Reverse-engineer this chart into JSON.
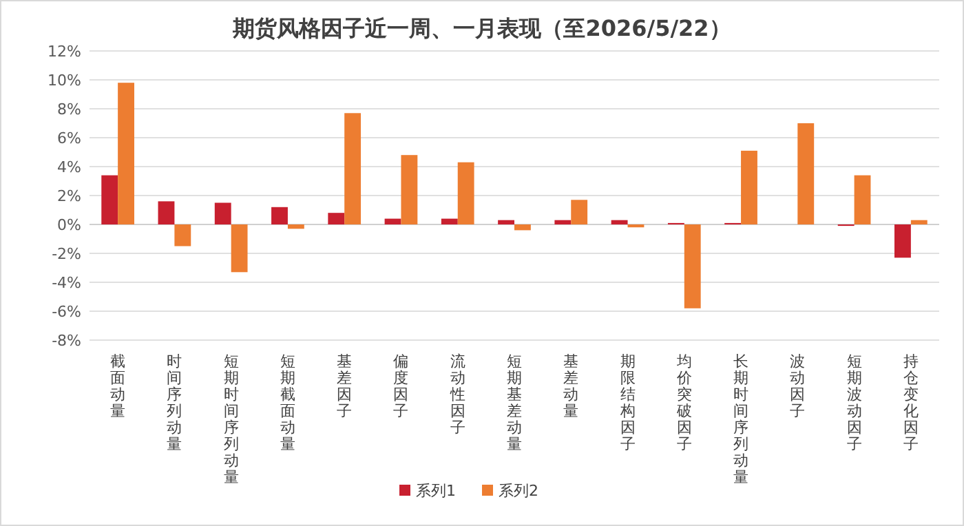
{
  "chart_data": {
    "type": "bar",
    "title": "期货风格因子近一周、一月表现（至2026/5/22）",
    "categories": [
      "截面动量",
      "时间序列动量",
      "短期时间序列动量",
      "短期截面动量",
      "基差因子",
      "偏度因子",
      "流动性因子",
      "短期基差动量",
      "基差动量",
      "期限结构因子",
      "均价突破因子",
      "长期时间序列动量",
      "波动因子",
      "短期波动因子",
      "持仓变化因子"
    ],
    "series": [
      {
        "name": "系列1",
        "color": "#c8202f",
        "values": [
          3.4,
          1.6,
          1.5,
          1.2,
          0.8,
          0.4,
          0.4,
          0.3,
          0.3,
          0.3,
          0.1,
          0.1,
          0,
          -0.1,
          -2.3
        ]
      },
      {
        "name": "系列2",
        "color": "#ed7d31",
        "values": [
          9.8,
          -1.5,
          -3.3,
          -0.3,
          7.7,
          4.8,
          4.3,
          -0.4,
          1.7,
          -0.2,
          -5.8,
          5.1,
          7.0,
          3.4,
          0.3
        ]
      }
    ],
    "ylim": [
      -8,
      12
    ],
    "yticks": [
      {
        "value": -8,
        "label": "-8%"
      },
      {
        "value": -6,
        "label": "-6%"
      },
      {
        "value": -4,
        "label": "-4%"
      },
      {
        "value": -2,
        "label": "-2%"
      },
      {
        "value": 0,
        "label": "0%"
      },
      {
        "value": 2,
        "label": "2%"
      },
      {
        "value": 4,
        "label": "4%"
      },
      {
        "value": 6,
        "label": "6%"
      },
      {
        "value": 8,
        "label": "8%"
      },
      {
        "value": 10,
        "label": "10%"
      },
      {
        "value": 12,
        "label": "12%"
      }
    ],
    "grid": "y",
    "legend": "bottom"
  }
}
